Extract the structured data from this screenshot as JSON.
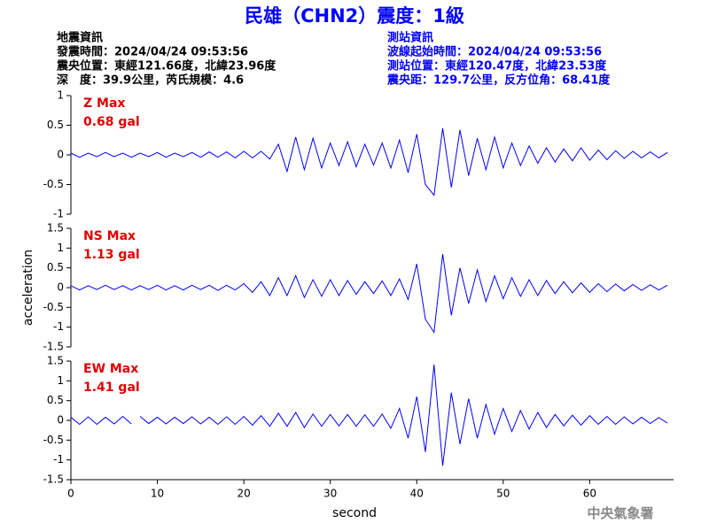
{
  "header": {
    "title": "民雄（CHN2）震度：1級",
    "left": [
      "地震資訊",
      "發震時間：2024/04/24 09:53:56",
      "震央位置：東經121.66度，北緯23.96度",
      "深　度：39.9公里，芮氏規模：4.6"
    ],
    "right": [
      "測站資訊",
      "波線起始時間：2024/04/24 09:53:56",
      "測站位置：東經120.47度，北緯23.53度",
      "震央距：129.7公里，反方位角：68.41度"
    ],
    "footer": "中央氣象署"
  },
  "chart_data": [
    {
      "type": "line",
      "annotation": [
        "Z Max",
        "0.68 gal"
      ],
      "color": "#0000ff",
      "xlim": [
        0,
        69.7
      ],
      "ylim": [
        -1,
        1
      ],
      "yticks": [
        -1,
        -0.5,
        0,
        0.5,
        1
      ],
      "x": [
        0,
        1,
        2,
        3,
        4,
        5,
        6,
        7,
        8,
        9,
        10,
        11,
        12,
        13,
        14,
        15,
        16,
        17,
        18,
        19,
        20,
        21,
        22,
        23,
        24,
        25,
        26,
        27,
        28,
        29,
        30,
        31,
        32,
        33,
        34,
        35,
        36,
        37,
        38,
        39,
        40,
        41,
        42,
        43,
        44,
        45,
        46,
        47,
        48,
        49,
        50,
        51,
        52,
        53,
        54,
        55,
        56,
        57,
        58,
        59,
        60,
        61,
        62,
        63,
        64,
        65,
        66,
        67,
        68,
        69
      ],
      "values": [
        0.03,
        -0.04,
        0.03,
        -0.03,
        0.04,
        -0.03,
        0.03,
        -0.04,
        0.03,
        -0.03,
        0.04,
        -0.04,
        0.03,
        -0.03,
        0.04,
        -0.04,
        0.05,
        -0.04,
        0.05,
        -0.05,
        0.06,
        -0.05,
        0.06,
        -0.07,
        0.18,
        -0.28,
        0.3,
        -0.25,
        0.28,
        -0.22,
        0.2,
        -0.18,
        0.22,
        -0.2,
        0.18,
        -0.17,
        0.2,
        -0.22,
        0.25,
        -0.3,
        0.35,
        -0.5,
        -0.68,
        0.45,
        -0.55,
        0.42,
        -0.35,
        0.28,
        -0.25,
        0.3,
        -0.22,
        0.2,
        -0.18,
        0.15,
        -0.14,
        0.12,
        -0.12,
        0.1,
        -0.1,
        0.12,
        -0.09,
        0.08,
        -0.08,
        0.07,
        -0.06,
        0.06,
        -0.05,
        0.05,
        -0.05,
        0.04
      ]
    },
    {
      "type": "line",
      "annotation": [
        "NS Max",
        "1.13 gal"
      ],
      "color": "#0000ff",
      "ylabel": "acceleration",
      "xlim": [
        0,
        69.7
      ],
      "ylim": [
        -1.5,
        1.5
      ],
      "yticks": [
        -1.5,
        -1,
        -0.5,
        0,
        0.5,
        1,
        1.5
      ],
      "x": [
        0,
        1,
        2,
        3,
        4,
        5,
        6,
        7,
        8,
        9,
        10,
        11,
        12,
        13,
        14,
        15,
        16,
        17,
        18,
        19,
        20,
        21,
        22,
        23,
        24,
        25,
        26,
        27,
        28,
        29,
        30,
        31,
        32,
        33,
        34,
        35,
        36,
        37,
        38,
        39,
        40,
        41,
        42,
        43,
        44,
        45,
        46,
        47,
        48,
        49,
        50,
        51,
        52,
        53,
        54,
        55,
        56,
        57,
        58,
        59,
        60,
        61,
        62,
        63,
        64,
        65,
        66,
        67,
        68,
        69
      ],
      "values": [
        0.05,
        -0.06,
        0.05,
        -0.05,
        0.06,
        -0.05,
        0.05,
        -0.06,
        0.05,
        -0.05,
        0.06,
        -0.06,
        0.05,
        -0.06,
        0.06,
        -0.05,
        0.06,
        -0.07,
        0.06,
        -0.06,
        0.1,
        -0.12,
        0.15,
        -0.2,
        0.25,
        -0.2,
        0.3,
        -0.25,
        0.2,
        -0.22,
        0.2,
        -0.2,
        0.18,
        -0.17,
        0.15,
        -0.15,
        0.17,
        -0.2,
        0.22,
        -0.3,
        0.6,
        -0.8,
        -1.13,
        0.85,
        -0.7,
        0.5,
        -0.4,
        0.45,
        -0.35,
        0.3,
        -0.28,
        0.25,
        -0.22,
        0.2,
        -0.2,
        0.18,
        -0.15,
        0.15,
        -0.13,
        0.12,
        -0.12,
        0.1,
        -0.1,
        0.09,
        -0.08,
        0.08,
        -0.07,
        0.07,
        -0.06,
        0.06
      ]
    },
    {
      "type": "line",
      "annotation": [
        "EW Max",
        "1.41 gal"
      ],
      "color": "#0000ff",
      "xlabel": "second",
      "xlim": [
        0,
        69.7
      ],
      "xticks": [
        0,
        10,
        20,
        30,
        40,
        50,
        60
      ],
      "ylim": [
        -1.5,
        1.5
      ],
      "yticks": [
        -1.5,
        -1,
        -0.5,
        0,
        0.5,
        1,
        1.5
      ],
      "x": [
        0,
        1,
        2,
        3,
        4,
        5,
        6,
        7,
        7.5,
        8,
        9,
        10,
        11,
        12,
        13,
        14,
        15,
        16,
        17,
        18,
        19,
        20,
        21,
        22,
        23,
        24,
        25,
        26,
        27,
        28,
        29,
        30,
        31,
        32,
        33,
        34,
        35,
        36,
        37,
        38,
        39,
        40,
        41,
        42,
        43,
        44,
        45,
        46,
        47,
        48,
        49,
        50,
        51,
        52,
        53,
        54,
        55,
        56,
        57,
        58,
        59,
        60,
        61,
        62,
        63,
        64,
        65,
        66,
        67,
        68,
        69
      ],
      "values": [
        0.08,
        -0.1,
        0.09,
        -0.1,
        0.08,
        -0.09,
        0.1,
        -0.09,
        null,
        0.1,
        -0.08,
        0.08,
        -0.09,
        0.08,
        -0.08,
        0.09,
        -0.09,
        0.08,
        -0.1,
        0.09,
        -0.1,
        0.1,
        -0.12,
        0.12,
        -0.15,
        0.18,
        -0.15,
        0.2,
        -0.18,
        0.16,
        -0.15,
        0.15,
        -0.14,
        0.15,
        -0.15,
        0.14,
        -0.15,
        0.16,
        -0.2,
        0.3,
        -0.45,
        0.6,
        -0.8,
        1.41,
        -1.15,
        0.7,
        -0.6,
        0.55,
        -0.45,
        0.4,
        -0.35,
        0.3,
        -0.28,
        0.25,
        -0.22,
        0.2,
        -0.18,
        0.15,
        -0.14,
        0.13,
        -0.12,
        0.12,
        -0.1,
        0.1,
        -0.1,
        0.09,
        -0.09,
        0.08,
        -0.08,
        0.07,
        -0.07
      ]
    }
  ]
}
